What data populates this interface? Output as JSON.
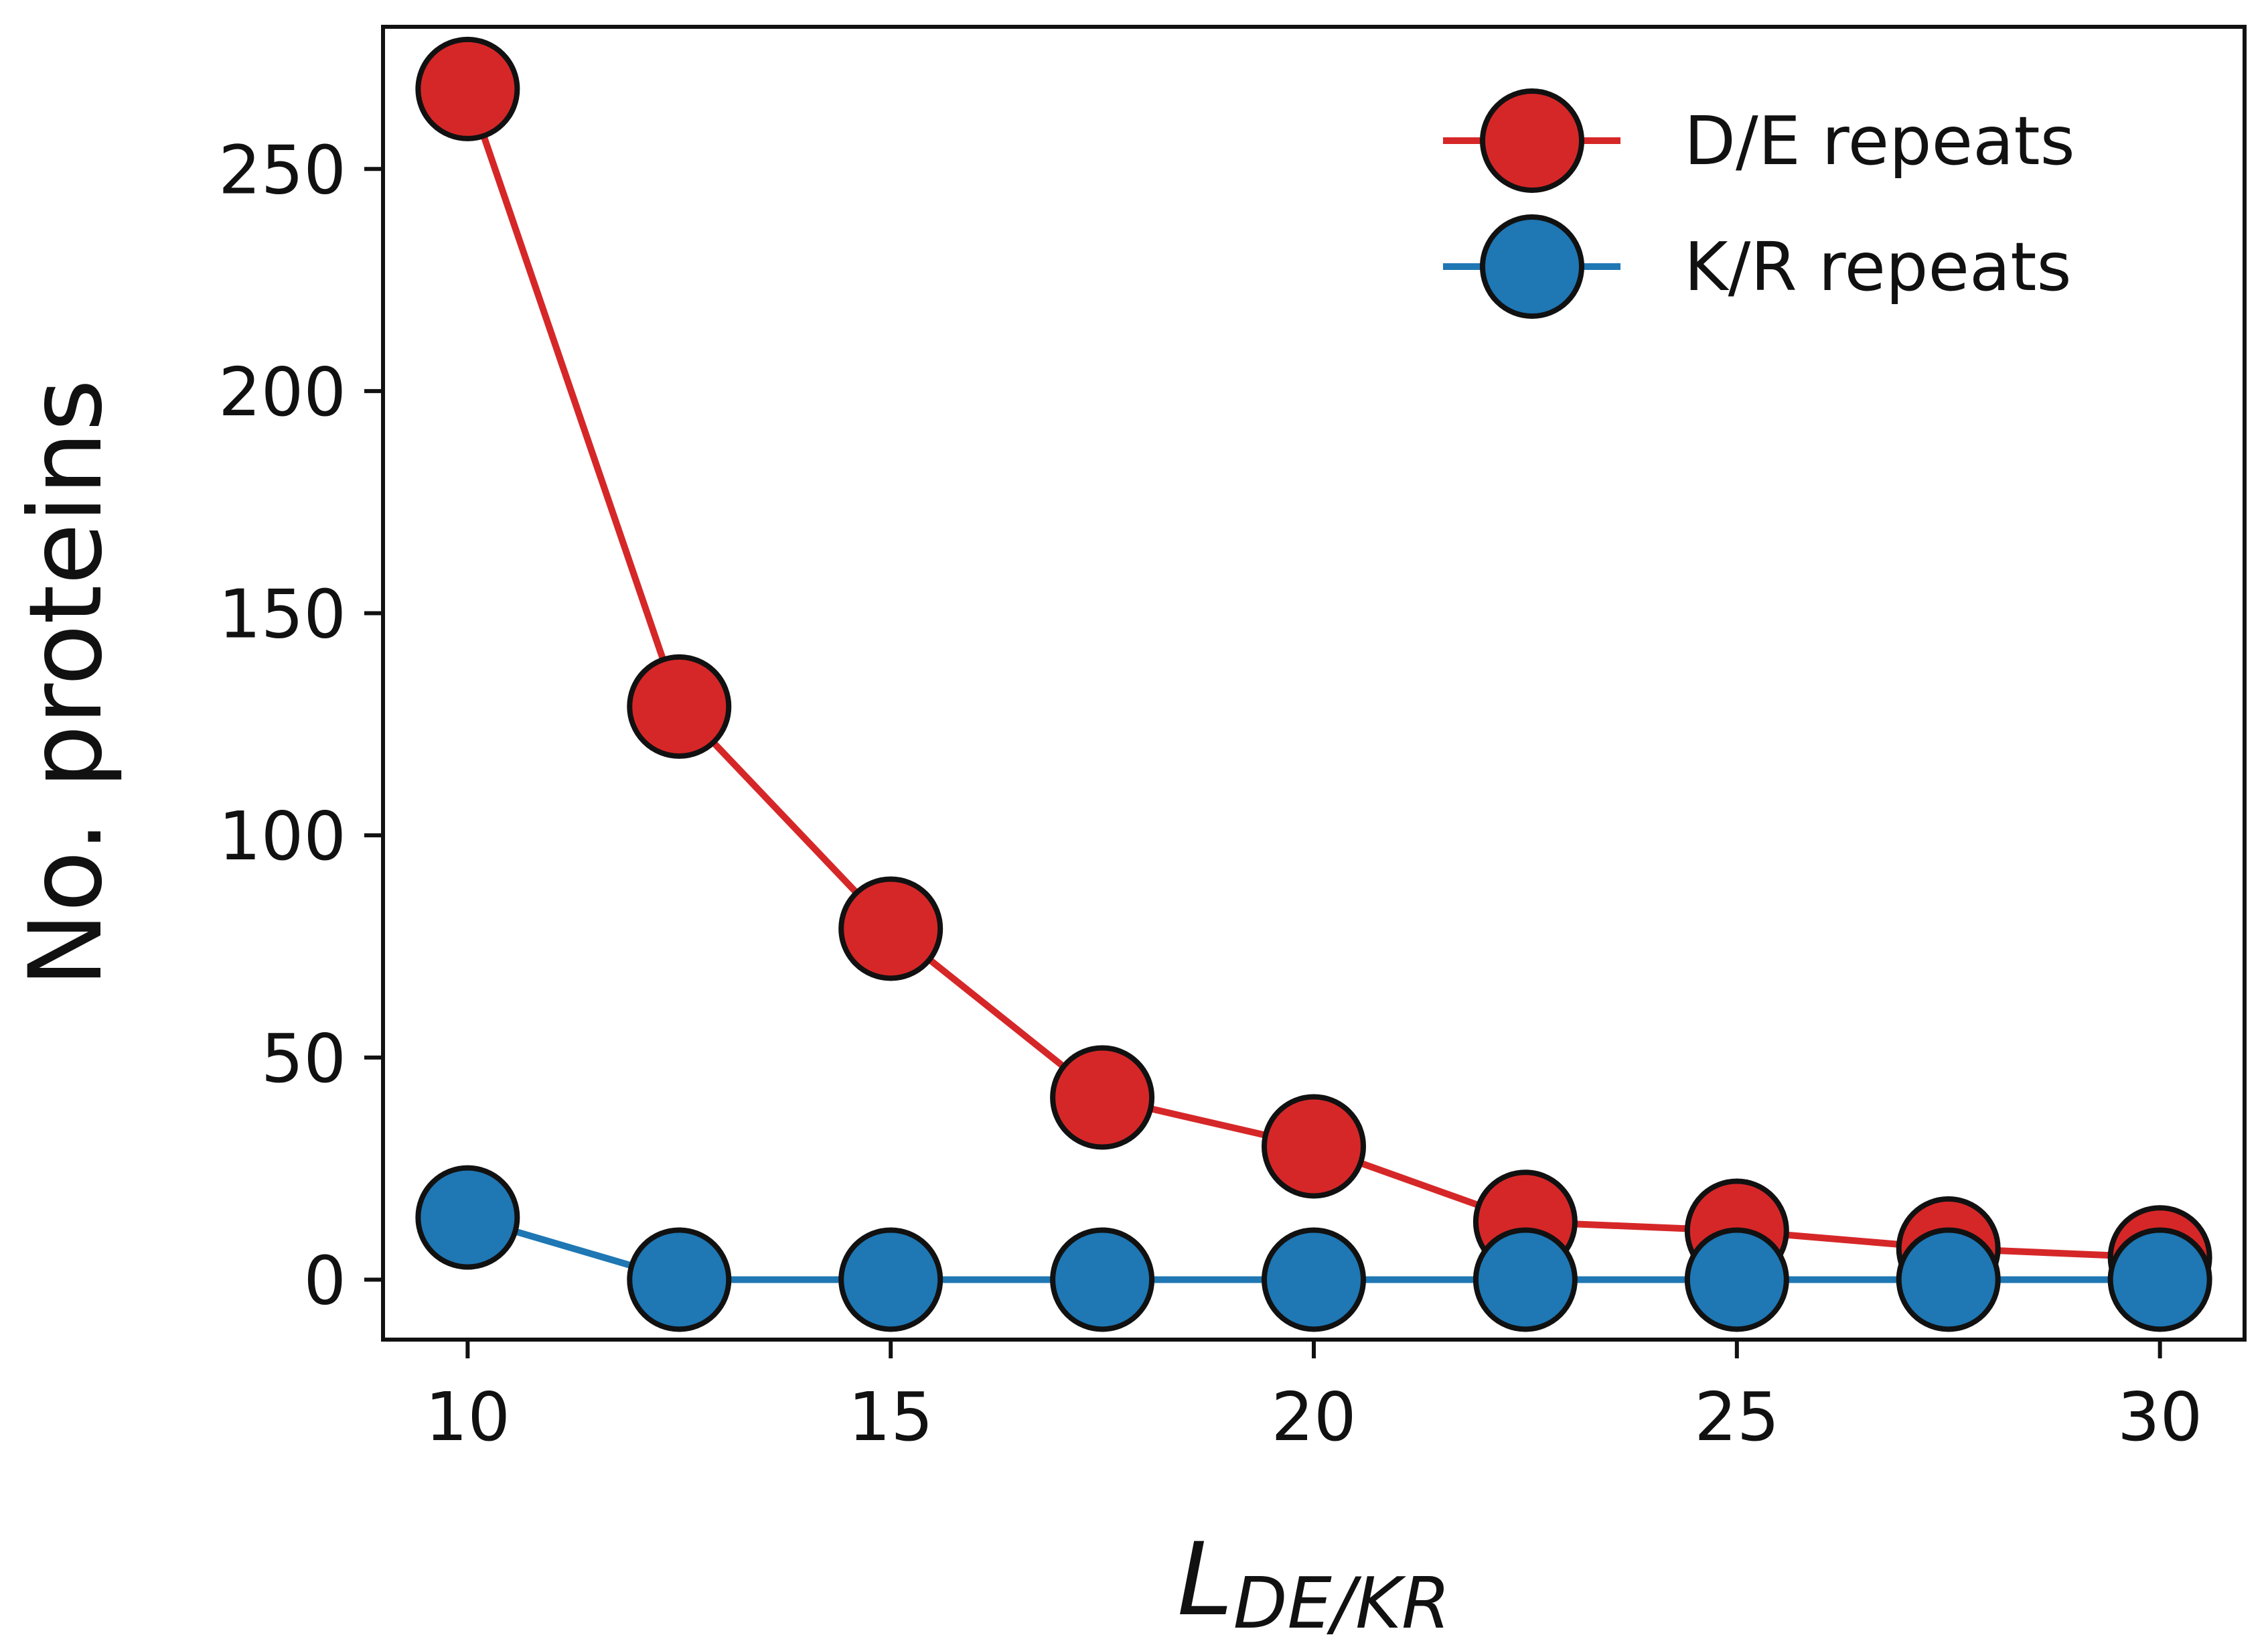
{
  "chart_data": {
    "type": "line",
    "title": "",
    "xlabel": "L",
    "xlabel_subscript": "DE/KR",
    "ylabel": "No. proteins",
    "xlim": [
      9,
      31
    ],
    "ylim": [
      -13.5,
      282
    ],
    "xticks": [
      10,
      15,
      20,
      25,
      30
    ],
    "yticks": [
      0,
      50,
      100,
      150,
      200,
      250
    ],
    "x": [
      10,
      12.5,
      15,
      17.5,
      20,
      22.5,
      25,
      27.5,
      30
    ],
    "series": [
      {
        "name": "D/E repeats",
        "color": "#d62728",
        "values": [
          268,
          129,
          79,
          41,
          30,
          13,
          11,
          7,
          5
        ]
      },
      {
        "name": "K/R repeats",
        "color": "#1f77b4",
        "values": [
          14,
          0,
          0,
          0,
          0,
          0,
          0,
          0,
          0
        ]
      }
    ],
    "legend_position": "top-right",
    "grid": false
  }
}
